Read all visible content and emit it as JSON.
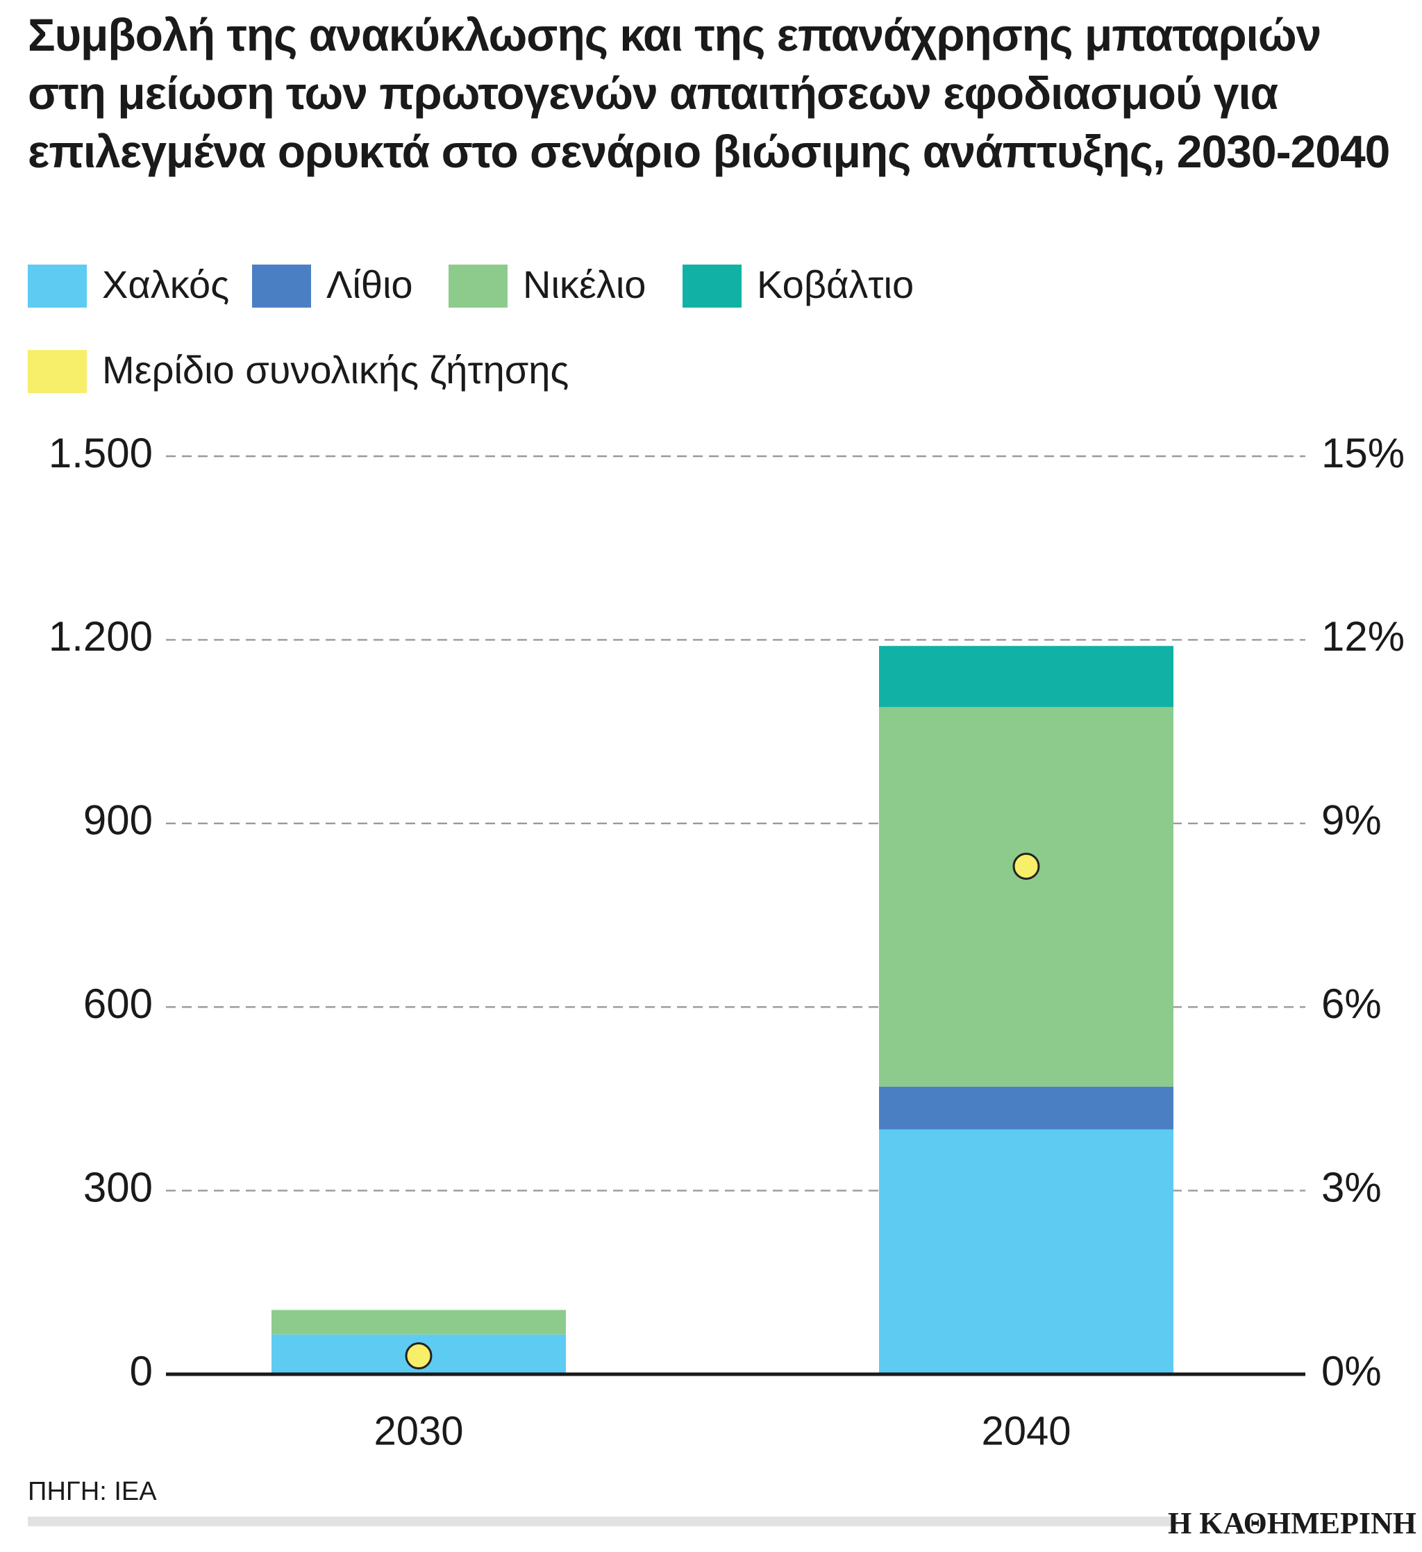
{
  "chart_data": {
    "type": "bar",
    "stacked": true,
    "title": "Συμβολή της ανακύκλωσης και της επανάχρησης μπαταριών στη μείωση των πρωτογενών απαιτήσεων εφοδιασμού για επιλεγμένα ορυκτά στο σενάριο βιώσιμης ανάπτυξης, 2030-2040",
    "categories": [
      "2030",
      "2040"
    ],
    "series": [
      {
        "name": "Χαλκός",
        "color": "#5ecbf2",
        "values": [
          65,
          400
        ]
      },
      {
        "name": "Λίθιο",
        "color": "#4b7fc4",
        "values": [
          0,
          70
        ]
      },
      {
        "name": "Νικέλιο",
        "color": "#8ccb8c",
        "values": [
          40,
          620
        ]
      },
      {
        "name": "Κοβάλτιο",
        "color": "#12b1a5",
        "values": [
          0,
          100
        ]
      },
      {
        "name": "Μερίδιο συνολικής ζήτησης",
        "color": "#f7ee6a",
        "type": "scatter",
        "axis": "y2",
        "values": [
          0.3,
          8.3
        ]
      }
    ],
    "ylim": [
      0,
      1500
    ],
    "yticks": [
      0,
      300,
      600,
      900,
      {
        "value": 1200,
        "label": "1.200"
      },
      {
        "value": 1500,
        "label": "1.500"
      }
    ],
    "y2lim": [
      0,
      15
    ],
    "y2ticks": [
      {
        "value": 0,
        "label": "0%"
      },
      {
        "value": 3,
        "label": "3%"
      },
      {
        "value": 6,
        "label": "6%"
      },
      {
        "value": 9,
        "label": "9%"
      },
      {
        "value": 12,
        "label": "12%"
      },
      {
        "value": 15,
        "label": "15%"
      }
    ],
    "grid": true,
    "source": "ΠΗΓΗ: IEA",
    "brand": "Η ΚΑΘΗΜΕΡΙΝΗ"
  }
}
